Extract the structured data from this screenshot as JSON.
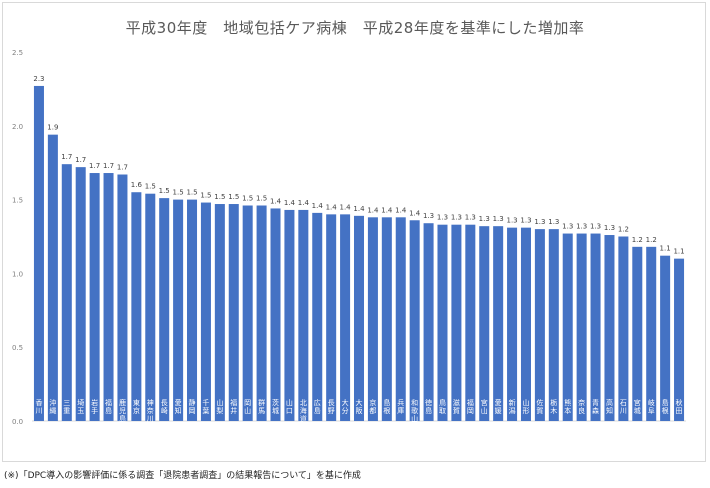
{
  "chart_data": {
    "type": "bar",
    "title": "平成30年度　地域包括ケア病棟　平成28年度を基準にした増加率",
    "ylim": [
      0.0,
      2.5
    ],
    "yticks": [
      "0.0",
      "0.5",
      "1.0",
      "1.5",
      "2.0",
      "2.5"
    ],
    "grid": false,
    "bar_color": "#4472c4",
    "categories": [
      "香川",
      "沖縄",
      "三重",
      "埼玉",
      "岩手",
      "福島",
      "鹿児島",
      "東京",
      "神奈川",
      "長崎",
      "愛知",
      "静岡",
      "千葉",
      "山梨",
      "福井",
      "岡山",
      "群馬",
      "茨城",
      "山口",
      "北海道",
      "広島",
      "長野",
      "大分",
      "大阪",
      "京都",
      "島根",
      "兵庫",
      "和歌山",
      "徳島",
      "鳥取",
      "滋賀",
      "福岡",
      "宮山",
      "愛媛",
      "新潟",
      "山形",
      "佐賀",
      "栃木",
      "熊本",
      "奈良",
      "青森",
      "高知",
      "石川",
      "宮城",
      "岐阜",
      "島根",
      "秋田"
    ],
    "values": [
      2.27,
      1.94,
      1.74,
      1.72,
      1.68,
      1.68,
      1.67,
      1.55,
      1.54,
      1.51,
      1.5,
      1.5,
      1.48,
      1.47,
      1.47,
      1.46,
      1.46,
      1.44,
      1.43,
      1.43,
      1.41,
      1.4,
      1.4,
      1.39,
      1.38,
      1.38,
      1.38,
      1.36,
      1.34,
      1.33,
      1.33,
      1.33,
      1.32,
      1.32,
      1.31,
      1.31,
      1.3,
      1.3,
      1.27,
      1.27,
      1.27,
      1.26,
      1.25,
      1.18,
      1.18,
      1.12,
      1.1
    ],
    "labels": [
      "2.3",
      "1.9",
      "1.7",
      "1.7",
      "1.7",
      "1.7",
      "1.7",
      "1.6",
      "1.5",
      "1.5",
      "1.5",
      "1.5",
      "1.5",
      "1.5",
      "1.5",
      "1.5",
      "1.5",
      "1.4",
      "1.4",
      "1.4",
      "1.4",
      "1.4",
      "1.4",
      "1.4",
      "1.4",
      "1.4",
      "1.4",
      "1.4",
      "1.3",
      "1.3",
      "1.3",
      "1.3",
      "1.3",
      "1.3",
      "1.3",
      "1.3",
      "1.3",
      "1.3",
      "1.3",
      "1.3",
      "1.3",
      "1.3",
      "1.2",
      "1.2",
      "1.2",
      "1.1",
      "1.1"
    ]
  },
  "footnote": "(※)「DPC導入の影響評価に係る調査「退院患者調査」の結果報告について」を基に作成"
}
